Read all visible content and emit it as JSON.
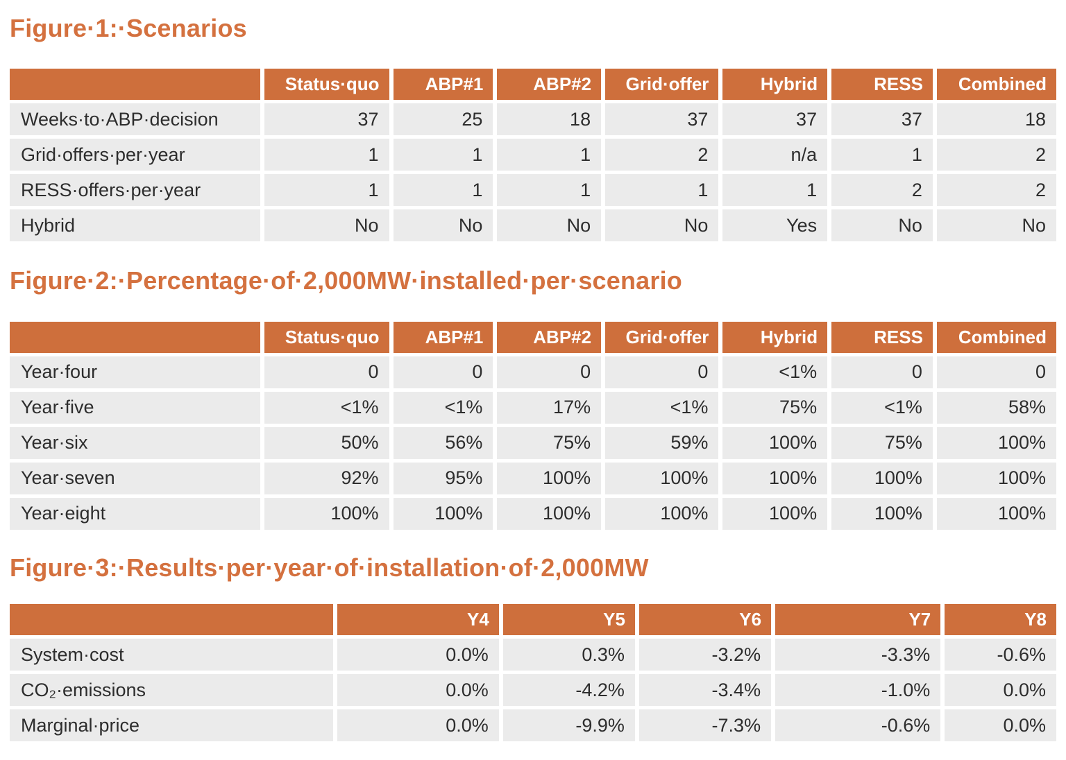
{
  "colors": {
    "accent_orange": "#ce6f3c",
    "title_orange": "#d4713f",
    "row_bg": "#ebebeb",
    "header_text": "#ffffff",
    "body_text": "#2d2d2d"
  },
  "figures": [
    {
      "title": "Figure·1:·Scenarios",
      "columns": [
        "",
        "Status·quo",
        "ABP#1",
        "ABP#2",
        "Grid·offer",
        "Hybrid",
        "RESS",
        "Combined"
      ],
      "rows": [
        {
          "label": "Weeks·to·ABP·decision",
          "values": [
            "37",
            "25",
            "18",
            "37",
            "37",
            "37",
            "18"
          ]
        },
        {
          "label": "Grid·offers·per·year",
          "values": [
            "1",
            "1",
            "1",
            "2",
            "n/a",
            "1",
            "2"
          ]
        },
        {
          "label": "RESS·offers·per·year",
          "values": [
            "1",
            "1",
            "1",
            "1",
            "1",
            "2",
            "2"
          ]
        },
        {
          "label": "Hybrid",
          "values": [
            "No",
            "No",
            "No",
            "No",
            "Yes",
            "No",
            "No"
          ]
        }
      ]
    },
    {
      "title": "Figure·2:·Percentage·of·2,000MW·installed·per·scenario",
      "columns": [
        "",
        "Status·quo",
        "ABP#1",
        "ABP#2",
        "Grid·offer",
        "Hybrid",
        "RESS",
        "Combined"
      ],
      "rows": [
        {
          "label": "Year·four",
          "values": [
            "0",
            "0",
            "0",
            "0",
            "<1%",
            "0",
            "0"
          ]
        },
        {
          "label": "Year·five",
          "values": [
            "<1%",
            "<1%",
            "17%",
            "<1%",
            "75%",
            "<1%",
            "58%"
          ]
        },
        {
          "label": "Year·six",
          "values": [
            "50%",
            "56%",
            "75%",
            "59%",
            "100%",
            "75%",
            "100%"
          ]
        },
        {
          "label": "Year·seven",
          "values": [
            "92%",
            "95%",
            "100%",
            "100%",
            "100%",
            "100%",
            "100%"
          ]
        },
        {
          "label": "Year·eight",
          "values": [
            "100%",
            "100%",
            "100%",
            "100%",
            "100%",
            "100%",
            "100%"
          ]
        }
      ]
    },
    {
      "title": "Figure·3:·Results·per·year·of·installation·of·2,000MW",
      "columns": [
        "",
        "Y4",
        "Y5",
        "Y6",
        "Y7",
        "Y8"
      ],
      "rows": [
        {
          "label": "System·cost",
          "values": [
            "0.0%",
            "0.3%",
            "-3.2%",
            "-3.3%",
            "-0.6%"
          ]
        },
        {
          "label": "CO₂·emissions",
          "values": [
            "0.0%",
            "-4.2%",
            "-3.4%",
            "-1.0%",
            "0.0%"
          ]
        },
        {
          "label": "Marginal·price",
          "values": [
            "0.0%",
            "-9.9%",
            "-7.3%",
            "-0.6%",
            "0.0%"
          ]
        }
      ]
    }
  ]
}
